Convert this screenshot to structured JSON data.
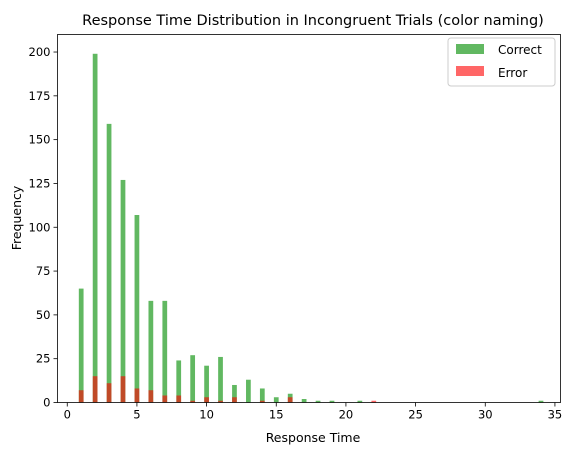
{
  "chart_data": {
    "type": "bar",
    "title": "Response Time Distribution in Incongruent Trials (color naming)",
    "xlabel": "Response Time",
    "ylabel": "Frequency",
    "xlim": [
      -0.7,
      35.4
    ],
    "ylim": [
      0,
      210
    ],
    "xticks": [
      0,
      5,
      10,
      15,
      20,
      25,
      30,
      35
    ],
    "yticks": [
      0,
      25,
      50,
      75,
      100,
      125,
      150,
      175,
      200
    ],
    "grid": false,
    "legend_position": "top-right",
    "series": [
      {
        "name": "Correct",
        "color": "#2ca02c",
        "points": [
          {
            "x": 1,
            "y": 65
          },
          {
            "x": 2,
            "y": 199
          },
          {
            "x": 3,
            "y": 159
          },
          {
            "x": 4,
            "y": 127
          },
          {
            "x": 5,
            "y": 107
          },
          {
            "x": 6,
            "y": 58
          },
          {
            "x": 7,
            "y": 58
          },
          {
            "x": 8,
            "y": 24
          },
          {
            "x": 9,
            "y": 27
          },
          {
            "x": 10,
            "y": 21
          },
          {
            "x": 11,
            "y": 26
          },
          {
            "x": 12,
            "y": 10
          },
          {
            "x": 13,
            "y": 13
          },
          {
            "x": 14,
            "y": 8
          },
          {
            "x": 15,
            "y": 3
          },
          {
            "x": 16,
            "y": 5
          },
          {
            "x": 17,
            "y": 2
          },
          {
            "x": 18,
            "y": 1
          },
          {
            "x": 19,
            "y": 1
          },
          {
            "x": 21,
            "y": 1
          },
          {
            "x": 34,
            "y": 1
          }
        ]
      },
      {
        "name": "Error",
        "color": "#ff0000",
        "points": [
          {
            "x": 1,
            "y": 7
          },
          {
            "x": 2,
            "y": 15
          },
          {
            "x": 3,
            "y": 11
          },
          {
            "x": 4,
            "y": 15
          },
          {
            "x": 5,
            "y": 8
          },
          {
            "x": 6,
            "y": 7
          },
          {
            "x": 7,
            "y": 4
          },
          {
            "x": 8,
            "y": 4
          },
          {
            "x": 9,
            "y": 1
          },
          {
            "x": 10,
            "y": 3
          },
          {
            "x": 11,
            "y": 1
          },
          {
            "x": 12,
            "y": 3
          },
          {
            "x": 14,
            "y": 1
          },
          {
            "x": 16,
            "y": 3
          },
          {
            "x": 22,
            "y": 1
          }
        ]
      }
    ]
  }
}
